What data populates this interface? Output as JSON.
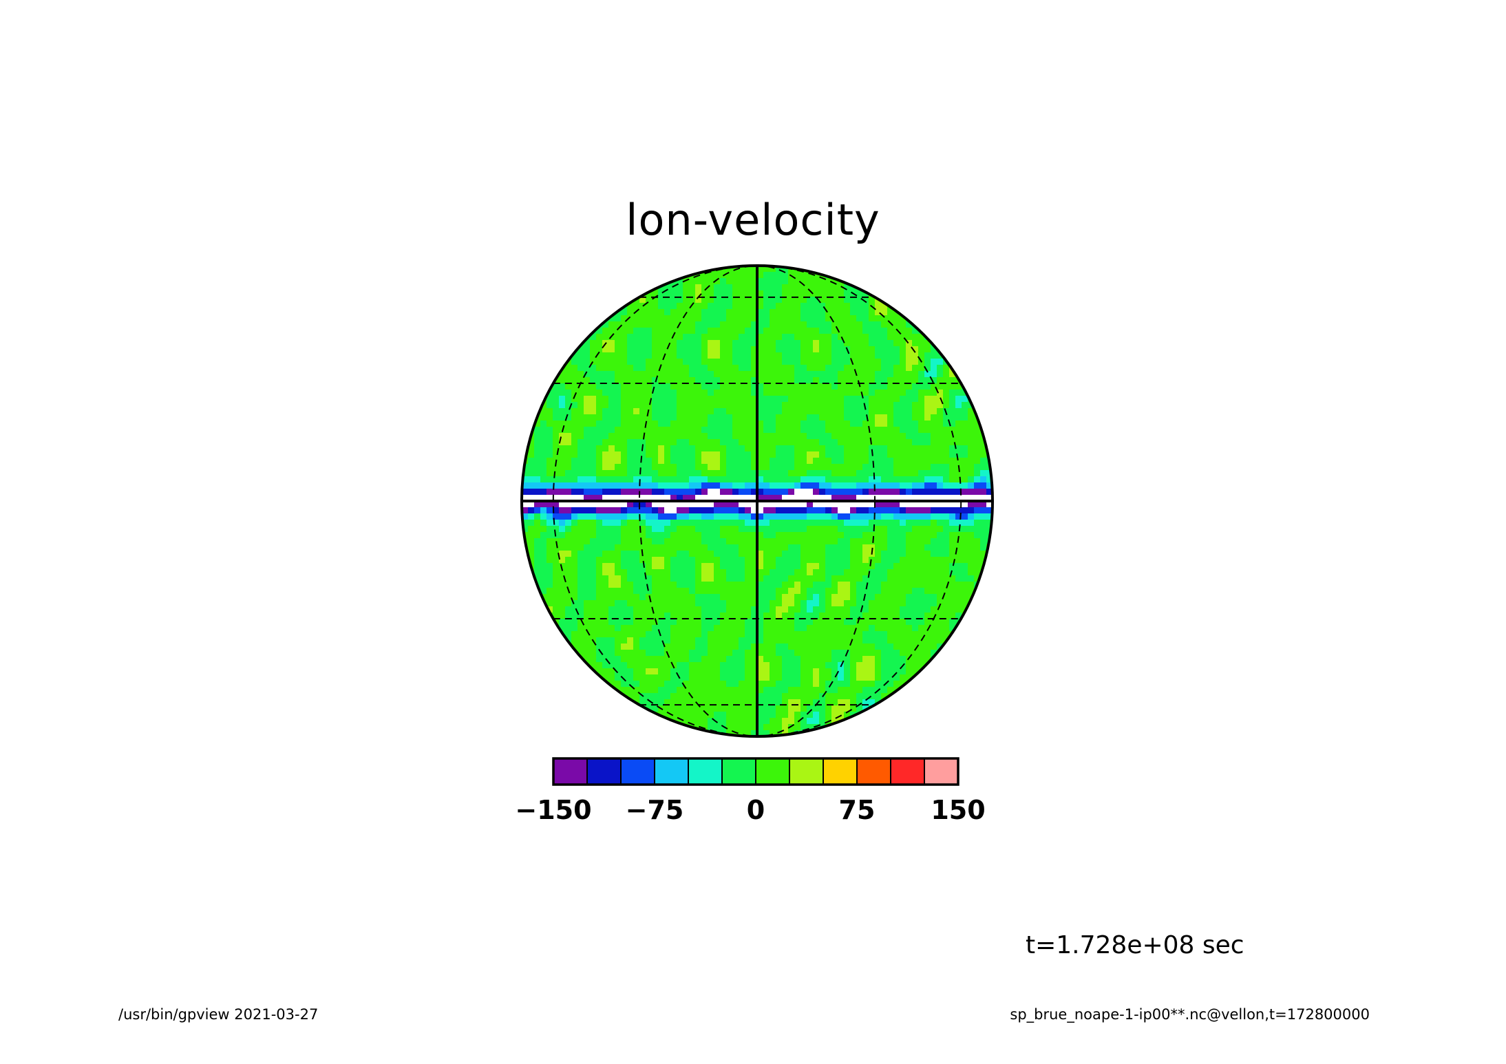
{
  "chart_data": {
    "type": "heatmap",
    "projection": "orthographic",
    "title": "lon-velocity",
    "colorbar": {
      "levels": [
        -150,
        -125,
        -100,
        -75,
        -50,
        -25,
        0,
        25,
        50,
        75,
        100,
        125,
        150
      ],
      "colors": [
        "#7a0aa8",
        "#0a14c8",
        "#0a4bf5",
        "#14c8f5",
        "#14f5c8",
        "#14f550",
        "#3cf50a",
        "#aaf514",
        "#ffd200",
        "#ff5a00",
        "#ff2828",
        "#ff9e9e"
      ],
      "tick_labels": [
        "−150",
        "−75",
        "0",
        "75",
        "150"
      ],
      "tick_values": [
        -150,
        -75,
        0,
        75,
        150
      ]
    },
    "grid": true,
    "below_range_color": "#ffffff"
  },
  "annotations": {
    "time": "t=1.728e+08 sec",
    "footer_left": "/usr/bin/gpview   2021-03-27",
    "footer_right": "sp_brue_noape-1-ip00**.nc@vellon,t=172800000"
  }
}
